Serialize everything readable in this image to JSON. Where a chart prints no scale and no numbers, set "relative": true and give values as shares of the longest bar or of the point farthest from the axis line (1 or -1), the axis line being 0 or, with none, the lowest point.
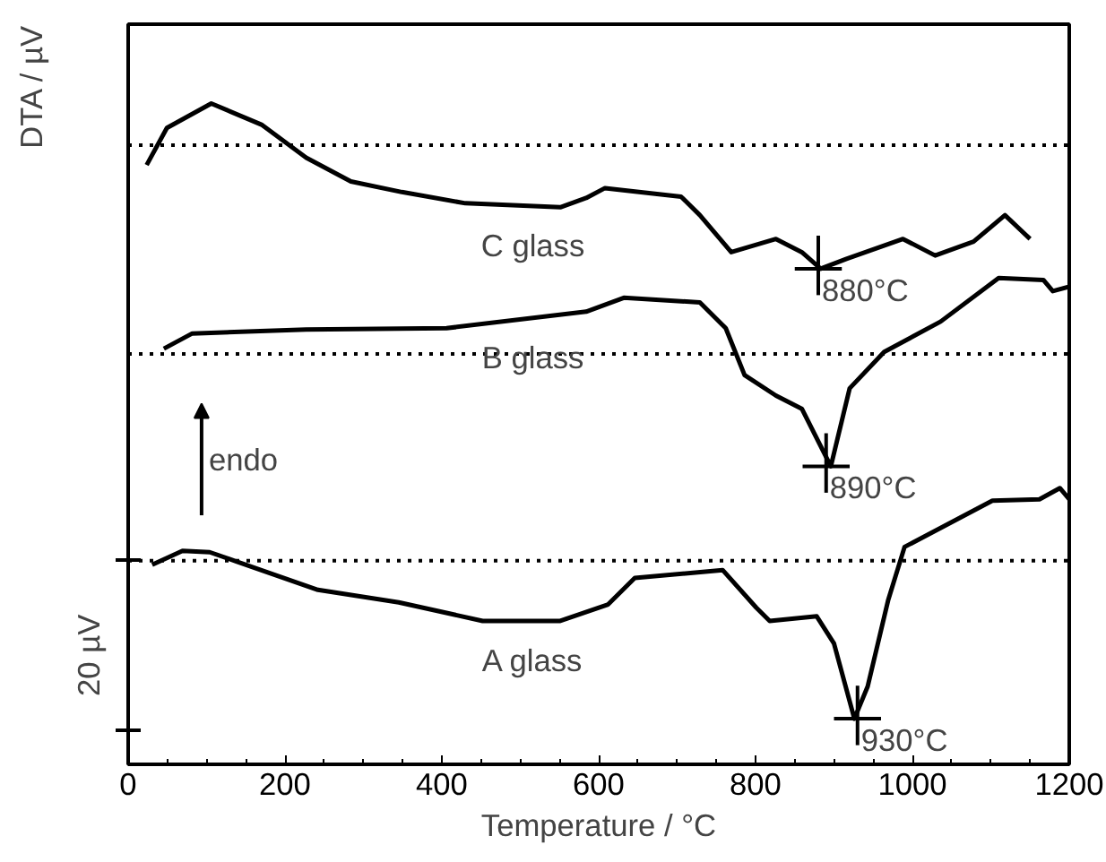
{
  "chart_data": {
    "type": "line",
    "relative": true,
    "xlabel": "Temperature / °C",
    "ylabel": "DTA / µV",
    "xlim": [
      0,
      1200
    ],
    "xticks": [
      0,
      200,
      400,
      600,
      800,
      1000,
      1200
    ],
    "line_style": "solid",
    "marker": "none",
    "series": [
      {
        "name": "C glass",
        "color": "#000000",
        "x": [
          23.6,
          49.4,
          106,
          170,
          227,
          284,
          349,
          430,
          551,
          584,
          608,
          705,
          729,
          769,
          826,
          859,
          883,
          916,
          988,
          1029,
          1078,
          1118,
          1150
        ],
        "values": [
          0.907,
          0.963,
          1.0,
          0.968,
          0.918,
          0.882,
          0.866,
          0.849,
          0.843,
          0.857,
          0.872,
          0.859,
          0.831,
          0.775,
          0.795,
          0.775,
          0.75,
          0.765,
          0.795,
          0.77,
          0.791,
          0.831,
          0.795
        ]
      },
      {
        "name": "B glass",
        "color": "#000000",
        "x": [
          45.5,
          81.7,
          227,
          406,
          584,
          632,
          729,
          762,
          786,
          826,
          859,
          896,
          920,
          964,
          1036,
          1110,
          1167,
          1179,
          1200
        ],
        "values": [
          0.629,
          0.652,
          0.658,
          0.66,
          0.685,
          0.706,
          0.699,
          0.66,
          0.589,
          0.558,
          0.538,
          0.451,
          0.569,
          0.624,
          0.67,
          0.736,
          0.733,
          0.716,
          0.723
        ]
      },
      {
        "name": "A glass",
        "color": "#000000",
        "x": [
          30.6,
          69.3,
          104,
          138,
          242,
          345,
          452,
          551,
          612,
          646,
          758,
          801,
          818,
          878,
          900,
          926,
          943,
          969,
          990,
          1102,
          1162,
          1188,
          1200
        ],
        "values": [
          0.302,
          0.323,
          0.321,
          0.307,
          0.264,
          0.245,
          0.217,
          0.217,
          0.242,
          0.282,
          0.294,
          0.237,
          0.217,
          0.224,
          0.183,
          0.069,
          0.118,
          0.248,
          0.329,
          0.399,
          0.401,
          0.418,
          0.401
        ]
      }
    ],
    "ref_lines": [
      {
        "axis": "y",
        "value": 0.937,
        "line_style": "dotted"
      },
      {
        "axis": "y",
        "value": 0.621,
        "line_style": "dotted"
      },
      {
        "axis": "y",
        "value": 0.308,
        "line_style": "dotted"
      }
    ],
    "annotations": [
      {
        "text": "880°C",
        "x": 880,
        "y": 0.75
      },
      {
        "text": "890°C",
        "x": 890,
        "y": 0.451
      },
      {
        "text": "930°C",
        "x": 930,
        "y": 0.069
      },
      "endo",
      "20 µV"
    ]
  }
}
